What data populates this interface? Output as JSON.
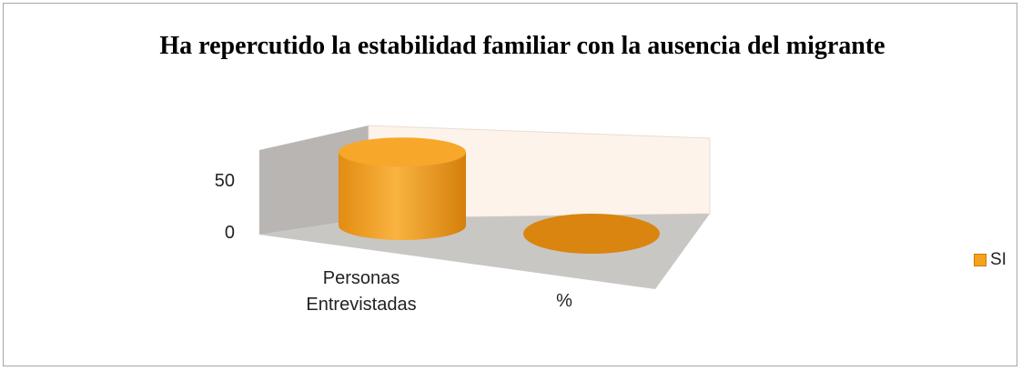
{
  "chart_data": {
    "type": "bar",
    "title": "Ha repercutido la estabilidad familiar con la ausencia del migrante",
    "categories": [
      "Personas Entrevistadas",
      "%"
    ],
    "category_lines": [
      [
        "Personas",
        "Entrevistadas"
      ],
      [
        "%"
      ]
    ],
    "series": [
      {
        "name": "SI",
        "values": [
          51,
          0
        ],
        "color": "#f5a21c"
      }
    ],
    "y_ticks": [
      0,
      50
    ],
    "ylim": [
      0,
      60
    ],
    "legend_position": "right",
    "bar_shape": "cylinder-3d",
    "colors": {
      "wall_back": "#fdf3ea",
      "wall_side": "#b8b5b2",
      "floor": "#c9c7c4",
      "bar_dark": "#d9850f",
      "bar_top": "#f7a72a"
    }
  }
}
